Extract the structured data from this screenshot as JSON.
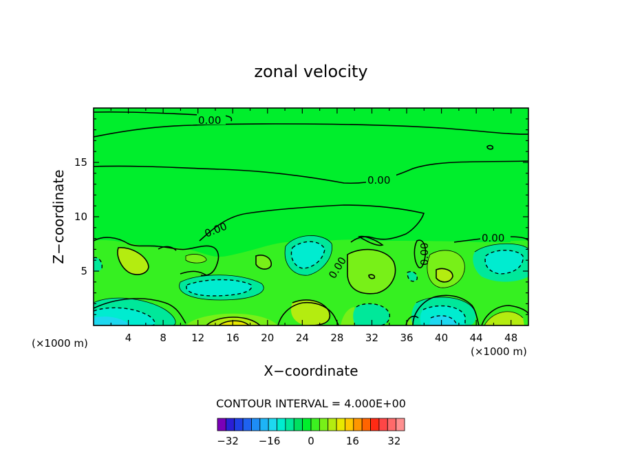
{
  "chart_data": {
    "type": "contour",
    "title": "zonal velocity",
    "xlabel": "X−coordinate",
    "ylabel": "Z−coordinate",
    "x_unit_left": "(×1000 m)",
    "x_unit_right": "(×1000 m)",
    "xlim": [
      0,
      50
    ],
    "ylim": [
      0,
      20
    ],
    "xticks": [
      4,
      8,
      12,
      16,
      20,
      24,
      28,
      32,
      36,
      40,
      44,
      48
    ],
    "yticks": [
      5,
      10,
      15
    ],
    "contour_interval_label": "CONTOUR INTERVAL = 4.000E+00",
    "contour_interval": 4.0,
    "line_labels": [
      "0.00",
      "0.00",
      "0.00",
      "0.00",
      "0.00",
      "0.00"
    ],
    "colorbar": {
      "levels_min": -36,
      "levels_max": 36,
      "tick_labels": [
        "−32",
        "−16",
        "0",
        "16",
        "32"
      ],
      "tick_values": [
        -32,
        -16,
        0,
        16,
        32
      ],
      "colors": [
        "#7a00b8",
        "#2a1fd6",
        "#1e3fe6",
        "#1e62f0",
        "#1e8cf6",
        "#1eb4f6",
        "#1ed8f0",
        "#00ecd0",
        "#00e89a",
        "#00e060",
        "#00ee2c",
        "#3cf020",
        "#78f018",
        "#b4ec10",
        "#e8e800",
        "#ffc800",
        "#ff9600",
        "#ff6400",
        "#ff2a14",
        "#ff4646",
        "#ff6a6a",
        "#ff9090"
      ]
    }
  }
}
